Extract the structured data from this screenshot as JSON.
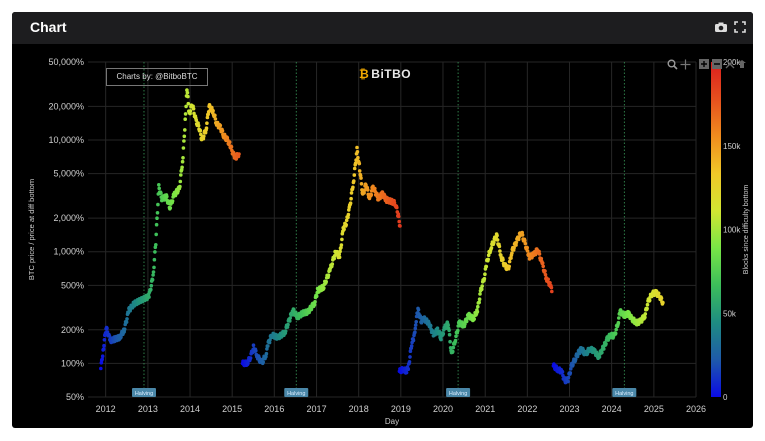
{
  "window": {
    "title": "Chart",
    "icons": [
      "camera-icon",
      "fullscreen-icon"
    ]
  },
  "credit": "Charts by: @BitboBTC",
  "logo": "BiTBO",
  "modebar_icons": [
    "zoom-icon",
    "pan-icon",
    "zoom-in-icon",
    "zoom-out-icon",
    "autoscale-icon",
    "reset-icon"
  ],
  "chart_data": {
    "type": "scatter",
    "xlabel": "Day",
    "ylabel": "BTC price / price at diff bottom",
    "x_scale": "date",
    "y_scale": "log",
    "xlim": [
      "2011-08-01",
      "2026-01-01"
    ],
    "ylim": [
      50,
      50000
    ],
    "x_ticks": [
      "2012",
      "2013",
      "2014",
      "2015",
      "2016",
      "2017",
      "2018",
      "2019",
      "2020",
      "2021",
      "2022",
      "2023",
      "2024",
      "2025",
      "2026"
    ],
    "y_ticks": [
      50,
      100,
      200,
      500,
      1000,
      2000,
      5000,
      10000,
      20000,
      50000
    ],
    "y_tick_labels": [
      "50%",
      "100%",
      "200%",
      "500%",
      "1,000%",
      "2,000%",
      "5,000%",
      "10,000%",
      "20,000%",
      "50,000%"
    ],
    "grid": true,
    "halvings": [
      {
        "date": "2012-11-28",
        "label": "Halving"
      },
      {
        "date": "2016-07-09",
        "label": "Halving"
      },
      {
        "date": "2020-05-11",
        "label": "Halving"
      },
      {
        "date": "2024-04-20",
        "label": "Halving"
      }
    ],
    "colorbar": {
      "label": "Blocks since difficulty bottom",
      "min": 0,
      "max": 200000,
      "ticks": [
        0,
        50000,
        100000,
        150000,
        200000
      ],
      "tick_labels": [
        "0",
        "50k",
        "100k",
        "150k",
        "200k"
      ],
      "colorscale": [
        "#0a0ae6",
        "#1e5aaa",
        "#1e8c82",
        "#3cbe5a",
        "#78e646",
        "#d2e632",
        "#f0c828",
        "#f08c1e",
        "#e6501e",
        "#dc1e1e"
      ]
    },
    "series": [
      {
        "points": [
          [
            "2011-11-20",
            90,
            0
          ],
          [
            "2011-12-10",
            130,
            5000
          ],
          [
            "2012-01-05",
            210,
            9000
          ],
          [
            "2012-02-10",
            160,
            13000
          ],
          [
            "2012-03-20",
            165,
            19000
          ],
          [
            "2012-05-01",
            170,
            24000
          ],
          [
            "2012-06-10",
            200,
            29000
          ],
          [
            "2012-07-20",
            300,
            35000
          ],
          [
            "2012-09-01",
            340,
            41000
          ],
          [
            "2012-10-15",
            360,
            47000
          ],
          [
            "2012-12-01",
            380,
            52000
          ],
          [
            "2013-01-10",
            400,
            58000
          ],
          [
            "2013-02-15",
            600,
            63000
          ],
          [
            "2013-03-10",
            1200,
            67000
          ],
          [
            "2013-04-05",
            3800,
            71000
          ],
          [
            "2013-05-01",
            3000,
            74000
          ],
          [
            "2013-06-10",
            3100,
            80000
          ],
          [
            "2013-07-10",
            2500,
            84000
          ],
          [
            "2013-08-15",
            3200,
            89000
          ],
          [
            "2013-10-01",
            3700,
            96000
          ],
          [
            "2013-11-01",
            7000,
            100000
          ],
          [
            "2013-11-20",
            15000,
            103000
          ],
          [
            "2013-12-05",
            29000,
            105000
          ],
          [
            "2013-12-25",
            17000,
            108000
          ],
          [
            "2014-01-20",
            21000,
            112000
          ],
          [
            "2014-02-20",
            15000,
            117000
          ],
          [
            "2014-03-20",
            13000,
            121000
          ],
          [
            "2014-04-15",
            10000,
            125000
          ],
          [
            "2014-05-20",
            12500,
            130000
          ],
          [
            "2014-06-15",
            20000,
            134000
          ],
          [
            "2014-07-20",
            18000,
            139000
          ],
          [
            "2014-08-20",
            14000,
            144000
          ],
          [
            "2014-09-20",
            13000,
            149000
          ],
          [
            "2014-10-20",
            11000,
            154000
          ],
          [
            "2014-11-20",
            10000,
            159000
          ],
          [
            "2014-12-15",
            9000,
            163000
          ],
          [
            "2015-01-10",
            7500,
            167000
          ],
          [
            "2015-02-01",
            7000,
            170000
          ],
          [
            "2015-03-01",
            7500,
            174000
          ]
        ]
      },
      {
        "points": [
          [
            "2015-04-01",
            100,
            0
          ],
          [
            "2015-05-10",
            100,
            5000
          ],
          [
            "2015-06-10",
            115,
            10000
          ],
          [
            "2015-07-05",
            140,
            14000
          ],
          [
            "2015-08-10",
            115,
            19000
          ],
          [
            "2015-09-15",
            100,
            24000
          ],
          [
            "2015-10-20",
            120,
            29000
          ],
          [
            "2015-11-10",
            150,
            32000
          ],
          [
            "2015-12-10",
            180,
            36000
          ],
          [
            "2016-02-01",
            170,
            42000
          ],
          [
            "2016-04-01",
            190,
            50000
          ],
          [
            "2016-06-10",
            300,
            58000
          ],
          [
            "2016-07-20",
            260,
            63000
          ],
          [
            "2016-09-01",
            280,
            69000
          ],
          [
            "2016-10-20",
            290,
            76000
          ],
          [
            "2016-12-15",
            350,
            84000
          ],
          [
            "2017-01-10",
            450,
            88000
          ],
          [
            "2017-03-01",
            480,
            96000
          ],
          [
            "2017-05-01",
            700,
            104000
          ],
          [
            "2017-06-15",
            1000,
            110000
          ],
          [
            "2017-07-20",
            900,
            116000
          ],
          [
            "2017-08-20",
            1600,
            120000
          ],
          [
            "2017-09-15",
            1800,
            124000
          ],
          [
            "2017-10-15",
            2500,
            128000
          ],
          [
            "2017-11-20",
            4500,
            133000
          ],
          [
            "2017-12-17",
            8200,
            137000
          ],
          [
            "2018-01-10",
            5500,
            141000
          ],
          [
            "2018-02-05",
            3200,
            145000
          ],
          [
            "2018-03-05",
            4000,
            149000
          ],
          [
            "2018-04-05",
            3000,
            153000
          ],
          [
            "2018-05-05",
            3800,
            157000
          ],
          [
            "2018-06-20",
            3000,
            162000
          ],
          [
            "2018-07-25",
            3300,
            167000
          ],
          [
            "2018-09-01",
            2900,
            172000
          ],
          [
            "2018-10-15",
            2800,
            177000
          ],
          [
            "2018-11-15",
            2700,
            181000
          ],
          [
            "2018-12-10",
            2100,
            185000
          ],
          [
            "2018-12-25",
            1700,
            188000
          ]
        ]
      },
      {
        "points": [
          [
            "2018-12-20",
            85,
            0
          ],
          [
            "2019-01-20",
            88,
            4000
          ],
          [
            "2019-02-20",
            85,
            8000
          ],
          [
            "2019-03-10",
            95,
            11000
          ],
          [
            "2019-04-05",
            150,
            14000
          ],
          [
            "2019-04-25",
            170,
            17000
          ],
          [
            "2019-05-10",
            230,
            19000
          ],
          [
            "2019-05-30",
            300,
            22000
          ],
          [
            "2019-06-25",
            240,
            25000
          ],
          [
            "2019-07-20",
            250,
            28000
          ],
          [
            "2019-09-01",
            230,
            34000
          ],
          [
            "2019-10-10",
            180,
            39000
          ],
          [
            "2019-11-15",
            200,
            44000
          ],
          [
            "2019-12-15",
            170,
            48000
          ],
          [
            "2020-01-20",
            210,
            53000
          ],
          [
            "2020-02-15",
            230,
            57000
          ],
          [
            "2020-03-15",
            120,
            61000
          ],
          [
            "2020-04-15",
            160,
            66000
          ],
          [
            "2020-05-20",
            230,
            72000
          ],
          [
            "2020-07-01",
            220,
            78000
          ],
          [
            "2020-08-10",
            270,
            84000
          ],
          [
            "2020-09-20",
            250,
            90000
          ],
          [
            "2020-10-25",
            300,
            96000
          ],
          [
            "2020-11-25",
            450,
            101000
          ],
          [
            "2020-12-25",
            600,
            106000
          ],
          [
            "2021-01-15",
            800,
            109000
          ],
          [
            "2021-02-20",
            1100,
            114000
          ],
          [
            "2021-04-10",
            1400,
            121000
          ],
          [
            "2021-05-20",
            900,
            126000
          ],
          [
            "2021-06-20",
            750,
            130000
          ],
          [
            "2021-07-20",
            700,
            134000
          ],
          [
            "2021-08-20",
            1000,
            138000
          ],
          [
            "2021-10-10",
            1300,
            143000
          ],
          [
            "2021-11-10",
            1500,
            147000
          ],
          [
            "2021-12-10",
            1200,
            151000
          ],
          [
            "2022-01-20",
            900,
            157000
          ],
          [
            "2022-03-01",
            950,
            162000
          ],
          [
            "2022-04-01",
            1050,
            166000
          ],
          [
            "2022-05-10",
            780,
            171000
          ],
          [
            "2022-06-15",
            580,
            176000
          ],
          [
            "2022-07-20",
            500,
            181000
          ],
          [
            "2022-08-01",
            440,
            184000
          ]
        ]
      },
      {
        "points": [
          [
            "2022-08-15",
            95,
            0
          ],
          [
            "2022-09-20",
            88,
            4000
          ],
          [
            "2022-10-25",
            85,
            8000
          ],
          [
            "2022-11-20",
            70,
            12000
          ],
          [
            "2022-12-20",
            72,
            16000
          ],
          [
            "2023-01-20",
            95,
            20000
          ],
          [
            "2023-02-20",
            110,
            24000
          ],
          [
            "2023-03-20",
            125,
            29000
          ],
          [
            "2023-04-15",
            135,
            33000
          ],
          [
            "2023-05-20",
            120,
            38000
          ],
          [
            "2023-06-25",
            135,
            43000
          ],
          [
            "2023-08-01",
            130,
            48000
          ],
          [
            "2023-09-10",
            115,
            53000
          ],
          [
            "2023-10-25",
            140,
            59000
          ],
          [
            "2023-11-25",
            165,
            63000
          ],
          [
            "2023-12-25",
            180,
            67000
          ],
          [
            "2024-01-25",
            175,
            71000
          ],
          [
            "2024-02-25",
            230,
            75000
          ],
          [
            "2024-03-15",
            290,
            78000
          ],
          [
            "2024-04-20",
            270,
            83000
          ],
          [
            "2024-05-25",
            280,
            88000
          ],
          [
            "2024-06-25",
            250,
            92000
          ],
          [
            "2024-08-05",
            230,
            97000
          ],
          [
            "2024-09-10",
            240,
            102000
          ],
          [
            "2024-10-15",
            270,
            106000
          ],
          [
            "2024-11-15",
            360,
            110000
          ],
          [
            "2024-12-15",
            420,
            114000
          ],
          [
            "2025-01-20",
            430,
            118000
          ],
          [
            "2025-02-20",
            400,
            122000
          ],
          [
            "2025-03-20",
            350,
            126000
          ]
        ]
      }
    ]
  }
}
